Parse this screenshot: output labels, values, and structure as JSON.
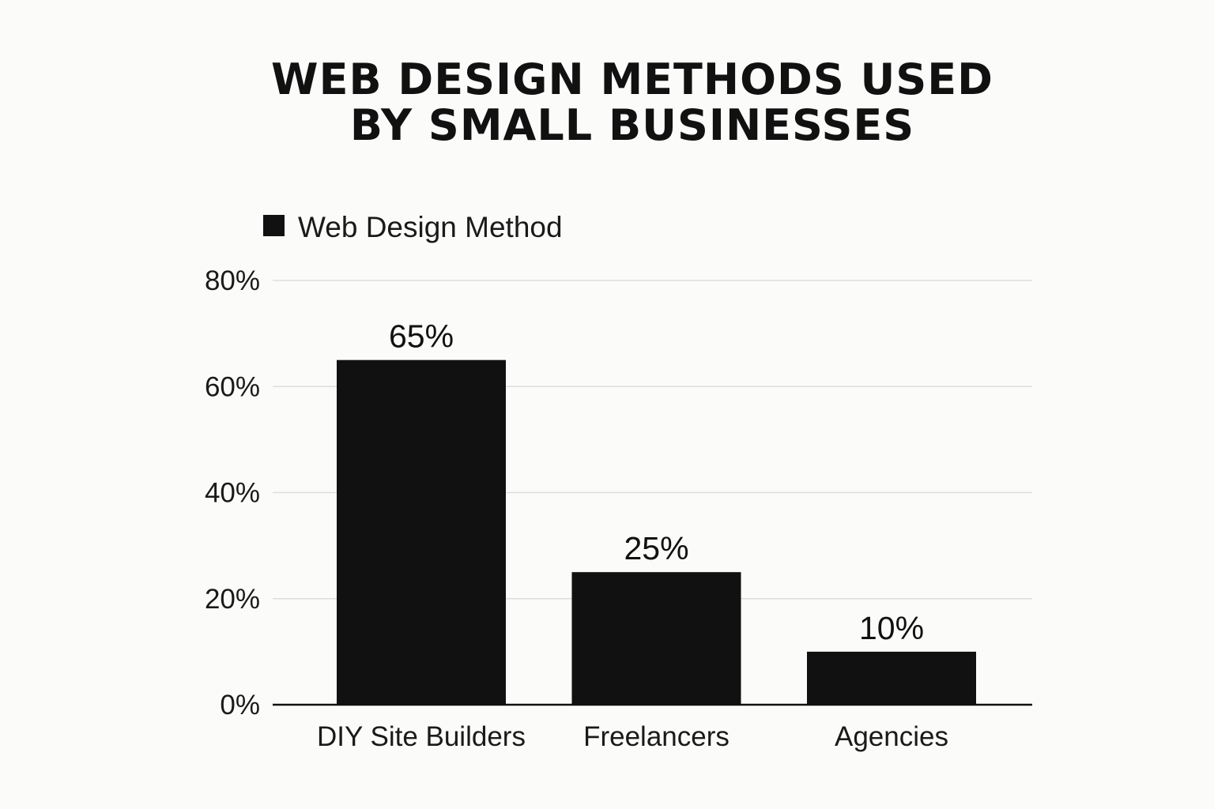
{
  "chart_data": {
    "type": "bar",
    "title_lines": [
      "WEB DESIGN METHODS USED",
      "BY SMALL BUSINESSES"
    ],
    "categories": [
      "DIY Site Builders",
      "Freelancers",
      "Agencies"
    ],
    "series": [
      {
        "name": "Web Design Method",
        "values": [
          65,
          25,
          10
        ],
        "data_labels": [
          "65%",
          "25%",
          "10%"
        ]
      }
    ],
    "y_ticks": [
      0,
      20,
      40,
      60,
      80
    ],
    "y_tick_labels": [
      "0%",
      "20%",
      "40%",
      "60%",
      "80%"
    ],
    "ylim": [
      0,
      80
    ],
    "grid": true,
    "legend_position": "top-left",
    "bar_color": "#111111",
    "grid_color": "#dedede",
    "axis_color": "#111111"
  }
}
